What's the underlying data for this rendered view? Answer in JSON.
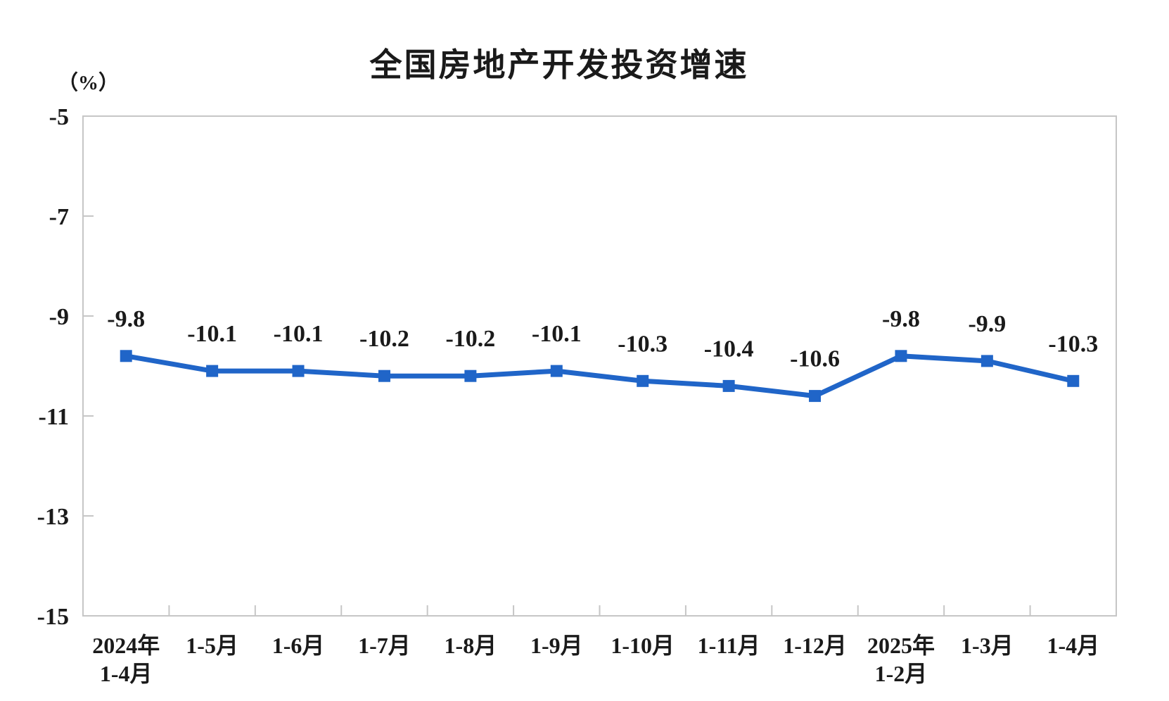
{
  "chart_data": {
    "type": "line",
    "title": "全国房地产开发投资增速",
    "ylabel_unit": "（%）",
    "categories": [
      "2024年\n1-4月",
      "1-5月",
      "1-6月",
      "1-7月",
      "1-8月",
      "1-9月",
      "1-10月",
      "1-11月",
      "1-12月",
      "2025年\n1-2月",
      "1-3月",
      "1-4月"
    ],
    "series": [
      {
        "name": "全国房地产开发投资增速",
        "values": [
          -9.8,
          -10.1,
          -10.1,
          -10.2,
          -10.2,
          -10.1,
          -10.3,
          -10.4,
          -10.6,
          -9.8,
          -9.9,
          -10.3
        ],
        "color": "#2065C8",
        "marker": "square"
      }
    ],
    "data_labels": [
      "-9.8",
      "-10.1",
      "-10.1",
      "-10.2",
      "-10.2",
      "-10.1",
      "-10.3",
      "-10.4",
      "-10.6",
      "-9.8",
      "-9.9",
      "-10.3"
    ],
    "ylim": [
      -15,
      -5
    ],
    "ytick_labels": [
      "-5",
      "-7",
      "-9",
      "-11",
      "-13",
      "-15"
    ],
    "ytick_values": [
      -5,
      -7,
      -9,
      -11,
      -13,
      -15
    ],
    "grid": false,
    "legend_position": "none",
    "axis_color": "#c6c6c6",
    "text_color": "#1a1a1a"
  }
}
